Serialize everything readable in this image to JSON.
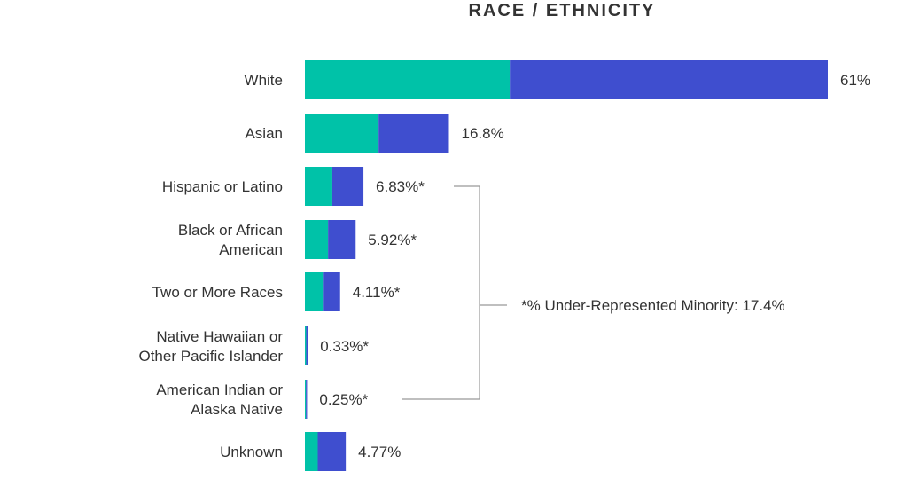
{
  "chart_data": {
    "type": "bar",
    "orientation": "horizontal",
    "stacked": true,
    "title": "RACE / ETHNICITY",
    "categories": [
      "White",
      "Asian",
      "Hispanic or Latino",
      "Black or African American",
      "Two or More Races",
      "Native Hawaiian or Other Pacific Islander",
      "American Indian or Alaska Native",
      "Unknown"
    ],
    "category_lines": [
      [
        "White"
      ],
      [
        "Asian"
      ],
      [
        "Hispanic or Latino"
      ],
      [
        "Black or African",
        "American"
      ],
      [
        "Two or More Races"
      ],
      [
        "Native Hawaiian or",
        "Other Pacific Islander"
      ],
      [
        "American Indian or",
        "Alaska Native"
      ],
      [
        "Unknown"
      ]
    ],
    "value_labels": [
      "61%",
      "16.8%",
      "6.83%*",
      "5.92%*",
      "4.11%*",
      "0.33%*",
      "0.25%*",
      "4.77%"
    ],
    "totals": [
      61,
      16.8,
      6.83,
      5.92,
      4.11,
      0.33,
      0.25,
      4.77
    ],
    "series": [
      {
        "color": "#00c2a8",
        "values": [
          23.9,
          8.6,
          3.2,
          2.7,
          2.1,
          0.15,
          0.12,
          1.5
        ]
      },
      {
        "color": "#3f4ecf",
        "values": [
          37.1,
          8.2,
          3.63,
          3.22,
          2.01,
          0.18,
          0.13,
          3.27
        ]
      }
    ],
    "xlim": [
      0,
      61
    ],
    "bracket": {
      "label": "*% Under-Represented Minority: 17.4%",
      "from_category": "Hispanic or Latino",
      "to_category": "American Indian or Alaska Native"
    },
    "colors": {
      "text": "#333333",
      "bracket_line": "#999999"
    }
  }
}
